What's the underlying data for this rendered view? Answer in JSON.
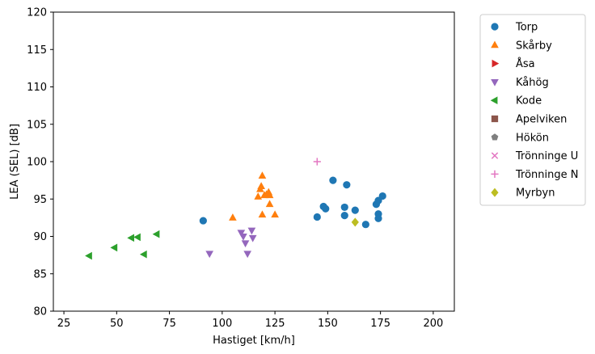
{
  "chart_data": {
    "type": "scatter",
    "xlabel": "Hastiget [km/h]",
    "ylabel": "LEA (SEL) [dB]",
    "xlim": [
      20,
      210
    ],
    "ylim": [
      80,
      120
    ],
    "xticks": [
      25,
      50,
      75,
      100,
      125,
      150,
      175,
      200
    ],
    "yticks": [
      80,
      85,
      90,
      95,
      100,
      105,
      110,
      115,
      120
    ],
    "grid": false,
    "legend_position": "outside-top-right",
    "series": [
      {
        "name": "Torp",
        "marker": "circle",
        "color": "#1f77b4",
        "points": [
          [
            91,
            92.1
          ],
          [
            145,
            92.6
          ],
          [
            148,
            94
          ],
          [
            149,
            93.7
          ],
          [
            152.5,
            97.5
          ],
          [
            158,
            93.9
          ],
          [
            158,
            92.8
          ],
          [
            159,
            96.9
          ],
          [
            163,
            93.5
          ],
          [
            168,
            91.6
          ],
          [
            173,
            94.3
          ],
          [
            174,
            94.8
          ],
          [
            174,
            93
          ],
          [
            174,
            92.4
          ],
          [
            176,
            95.4
          ]
        ]
      },
      {
        "name": "Skårby",
        "marker": "triangle-up",
        "color": "#ff7f0e",
        "points": [
          [
            105,
            92.5
          ],
          [
            117,
            95.3
          ],
          [
            118,
            96.3
          ],
          [
            118.5,
            96.7
          ],
          [
            119,
            98.1
          ],
          [
            119,
            92.9
          ],
          [
            120,
            95.5
          ],
          [
            121,
            95.6
          ],
          [
            122,
            95.9
          ],
          [
            122.5,
            95.5
          ],
          [
            122.5,
            94.3
          ],
          [
            125,
            92.9
          ]
        ]
      },
      {
        "name": "Åsa",
        "marker": "triangle-right",
        "color": "#d62728",
        "points": []
      },
      {
        "name": "Kåhög",
        "marker": "triangle-down",
        "color": "#9467bd",
        "points": [
          [
            94,
            87.7
          ],
          [
            109,
            90.5
          ],
          [
            110,
            90
          ],
          [
            111,
            89.1
          ],
          [
            112,
            87.7
          ],
          [
            114,
            90.8
          ],
          [
            114.5,
            89.8
          ]
        ]
      },
      {
        "name": "Kode",
        "marker": "triangle-left",
        "color": "#2ca02c",
        "points": [
          [
            37,
            87.4
          ],
          [
            49,
            88.5
          ],
          [
            57,
            89.8
          ],
          [
            60,
            89.9
          ],
          [
            63,
            87.6
          ],
          [
            69,
            90.3
          ]
        ]
      },
      {
        "name": "Apelviken",
        "marker": "square",
        "color": "#8c564b",
        "points": []
      },
      {
        "name": "Hökön",
        "marker": "pentagon",
        "color": "#7f7f7f",
        "points": []
      },
      {
        "name": "Trönninge U",
        "marker": "x",
        "color": "#e377c2",
        "points": []
      },
      {
        "name": "Trönninge N",
        "marker": "plus",
        "color": "#e377c2",
        "points": [
          [
            145,
            100
          ]
        ]
      },
      {
        "name": "Myrbyn",
        "marker": "diamond",
        "color": "#bcbd22",
        "points": [
          [
            163,
            91.9
          ]
        ]
      }
    ]
  }
}
